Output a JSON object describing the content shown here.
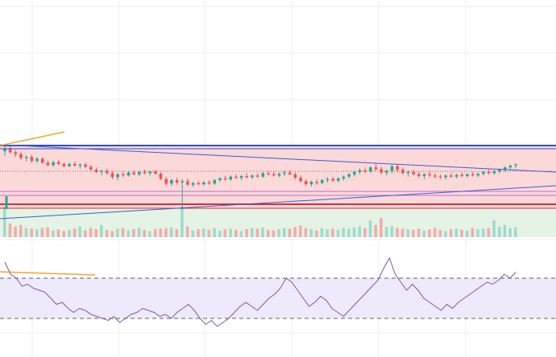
{
  "colors": {
    "background": "#ffffff",
    "grid": "#eceff3",
    "bull": "#26a69a",
    "bear": "#ef5350",
    "bull_vol": "#9fd9cf",
    "bear_vol": "#f4aaa8",
    "box_fill": "#fbd9d9",
    "box_border": "#2b4fd1",
    "green_zone": "#e4f3e4",
    "trend_line": "#3d5bd6",
    "red_line": "#d32f3c",
    "magenta_line": "#c06ad0",
    "orange_line": "#f2a72a",
    "rsi_band": "#efeafb",
    "rsi_line": "#7b57b0",
    "rsi_dash": "#5f5f5f",
    "dotted_price": "#9a6060"
  },
  "chart_data": [
    {
      "type": "candlestick",
      "ohlc": [
        [
          1.0,
          1.1,
          0.92,
          1.05
        ],
        [
          1.05,
          1.08,
          0.96,
          0.98
        ],
        [
          0.98,
          1.02,
          0.9,
          0.95
        ],
        [
          0.95,
          0.99,
          0.85,
          0.88
        ],
        [
          0.88,
          0.93,
          0.82,
          0.9
        ],
        [
          0.9,
          0.94,
          0.8,
          0.83
        ],
        [
          0.83,
          0.9,
          0.8,
          0.87
        ],
        [
          0.87,
          0.89,
          0.78,
          0.8
        ],
        [
          0.8,
          0.84,
          0.74,
          0.76
        ],
        [
          0.76,
          0.83,
          0.73,
          0.81
        ],
        [
          0.81,
          0.85,
          0.76,
          0.78
        ],
        [
          0.78,
          0.81,
          0.72,
          0.74
        ],
        [
          0.74,
          0.8,
          0.72,
          0.78
        ],
        [
          0.78,
          0.82,
          0.74,
          0.75
        ],
        [
          0.75,
          0.79,
          0.7,
          0.77
        ],
        [
          0.77,
          0.8,
          0.71,
          0.73
        ],
        [
          0.73,
          0.76,
          0.66,
          0.68
        ],
        [
          0.68,
          0.72,
          0.62,
          0.64
        ],
        [
          0.64,
          0.68,
          0.58,
          0.66
        ],
        [
          0.66,
          0.7,
          0.6,
          0.62
        ],
        [
          0.62,
          0.66,
          0.52,
          0.55
        ],
        [
          0.55,
          0.62,
          0.5,
          0.6
        ],
        [
          0.6,
          0.64,
          0.55,
          0.58
        ],
        [
          0.58,
          0.65,
          0.56,
          0.63
        ],
        [
          0.63,
          0.67,
          0.58,
          0.6
        ],
        [
          0.6,
          0.66,
          0.57,
          0.64
        ],
        [
          0.64,
          0.68,
          0.6,
          0.62
        ],
        [
          0.62,
          0.66,
          0.58,
          0.65
        ],
        [
          0.65,
          0.68,
          0.6,
          0.61
        ],
        [
          0.61,
          0.64,
          0.5,
          0.52
        ],
        [
          0.52,
          0.56,
          0.4,
          0.44
        ],
        [
          0.44,
          0.52,
          0.4,
          0.5
        ],
        [
          0.5,
          0.54,
          0.42,
          0.46
        ],
        [
          0.46,
          0.52,
          0.0,
          0.48
        ],
        [
          0.48,
          0.53,
          0.4,
          0.42
        ],
        [
          0.42,
          0.47,
          0.38,
          0.45
        ],
        [
          0.45,
          0.49,
          0.41,
          0.43
        ],
        [
          0.43,
          0.48,
          0.4,
          0.46
        ],
        [
          0.46,
          0.5,
          0.42,
          0.44
        ],
        [
          0.44,
          0.52,
          0.42,
          0.5
        ],
        [
          0.5,
          0.55,
          0.47,
          0.53
        ],
        [
          0.53,
          0.57,
          0.48,
          0.51
        ],
        [
          0.51,
          0.58,
          0.49,
          0.56
        ],
        [
          0.56,
          0.6,
          0.52,
          0.54
        ],
        [
          0.54,
          0.59,
          0.5,
          0.57
        ],
        [
          0.57,
          0.62,
          0.53,
          0.55
        ],
        [
          0.55,
          0.6,
          0.52,
          0.58
        ],
        [
          0.58,
          0.62,
          0.54,
          0.56
        ],
        [
          0.56,
          0.64,
          0.54,
          0.62
        ],
        [
          0.62,
          0.66,
          0.58,
          0.6
        ],
        [
          0.6,
          0.64,
          0.56,
          0.58
        ],
        [
          0.58,
          0.63,
          0.55,
          0.61
        ],
        [
          0.61,
          0.66,
          0.57,
          0.63
        ],
        [
          0.63,
          0.67,
          0.59,
          0.6
        ],
        [
          0.6,
          0.63,
          0.52,
          0.54
        ],
        [
          0.54,
          0.58,
          0.46,
          0.48
        ],
        [
          0.48,
          0.52,
          0.4,
          0.43
        ],
        [
          0.43,
          0.49,
          0.39,
          0.47
        ],
        [
          0.47,
          0.51,
          0.42,
          0.45
        ],
        [
          0.45,
          0.52,
          0.43,
          0.5
        ],
        [
          0.5,
          0.55,
          0.46,
          0.52
        ],
        [
          0.52,
          0.56,
          0.47,
          0.49
        ],
        [
          0.49,
          0.55,
          0.46,
          0.53
        ],
        [
          0.53,
          0.58,
          0.49,
          0.56
        ],
        [
          0.56,
          0.62,
          0.53,
          0.6
        ],
        [
          0.6,
          0.66,
          0.56,
          0.64
        ],
        [
          0.64,
          0.7,
          0.6,
          0.67
        ],
        [
          0.67,
          0.72,
          0.62,
          0.65
        ],
        [
          0.65,
          0.74,
          0.62,
          0.72
        ],
        [
          0.72,
          0.78,
          0.66,
          0.69
        ],
        [
          0.69,
          0.73,
          0.6,
          0.63
        ],
        [
          0.63,
          0.68,
          0.58,
          0.66
        ],
        [
          0.66,
          0.76,
          0.62,
          0.74
        ],
        [
          0.74,
          0.78,
          0.64,
          0.68
        ],
        [
          0.68,
          0.72,
          0.6,
          0.62
        ],
        [
          0.62,
          0.66,
          0.56,
          0.64
        ],
        [
          0.64,
          0.68,
          0.58,
          0.6
        ],
        [
          0.6,
          0.64,
          0.54,
          0.57
        ],
        [
          0.57,
          0.62,
          0.52,
          0.6
        ],
        [
          0.6,
          0.65,
          0.55,
          0.58
        ],
        [
          0.58,
          0.62,
          0.53,
          0.56
        ],
        [
          0.56,
          0.6,
          0.52,
          0.55
        ],
        [
          0.55,
          0.6,
          0.51,
          0.58
        ],
        [
          0.58,
          0.62,
          0.54,
          0.56
        ],
        [
          0.56,
          0.61,
          0.53,
          0.59
        ],
        [
          0.59,
          0.63,
          0.55,
          0.57
        ],
        [
          0.57,
          0.62,
          0.54,
          0.6
        ],
        [
          0.6,
          0.64,
          0.56,
          0.58
        ],
        [
          0.58,
          0.63,
          0.55,
          0.61
        ],
        [
          0.61,
          0.66,
          0.58,
          0.64
        ],
        [
          0.64,
          0.68,
          0.6,
          0.62
        ],
        [
          0.62,
          0.67,
          0.59,
          0.65
        ],
        [
          0.65,
          0.7,
          0.62,
          0.68
        ],
        [
          0.68,
          0.74,
          0.64,
          0.72
        ],
        [
          0.72,
          0.77,
          0.68,
          0.75
        ],
        [
          0.75,
          0.79,
          0.7,
          0.77
        ]
      ],
      "volume": [
        1.0,
        0.45,
        0.35,
        0.4,
        0.3,
        0.28,
        0.25,
        0.3,
        0.32,
        0.22,
        0.26,
        0.2,
        0.24,
        0.28,
        0.35,
        0.22,
        0.3,
        0.26,
        0.4,
        0.24,
        0.2,
        0.28,
        0.3,
        0.22,
        0.26,
        0.3,
        0.24,
        0.2,
        0.26,
        0.28,
        0.3,
        0.32,
        0.26,
        1.0,
        0.35,
        0.22,
        0.26,
        0.28,
        0.24,
        0.3,
        0.22,
        0.26,
        0.28,
        0.24,
        0.2,
        0.26,
        0.3,
        0.28,
        0.32,
        0.24,
        0.22,
        0.26,
        0.3,
        0.28,
        0.34,
        0.38,
        0.3,
        0.26,
        0.22,
        0.3,
        0.26,
        0.28,
        0.24,
        0.3,
        0.28,
        0.32,
        0.36,
        0.3,
        0.55,
        0.4,
        0.62,
        0.34,
        0.36,
        0.3,
        0.28,
        0.26,
        0.24,
        0.28,
        0.22,
        0.26,
        0.3,
        0.24,
        0.2,
        0.26,
        0.28,
        0.24,
        0.22,
        0.3,
        0.26,
        0.28,
        0.3,
        0.55,
        0.34,
        0.4,
        0.3,
        0.32
      ]
    },
    {
      "type": "line",
      "values": [
        58,
        52,
        50,
        46,
        47,
        45,
        44,
        43,
        40,
        37,
        38,
        35,
        33,
        35,
        34,
        32,
        31,
        30,
        29,
        31,
        28,
        30,
        32,
        33,
        35,
        34,
        33,
        31,
        32,
        30,
        33,
        35,
        37,
        34,
        30,
        27,
        29,
        26,
        28,
        30,
        33,
        36,
        38,
        36,
        34,
        37,
        40,
        42,
        45,
        50,
        48,
        44,
        40,
        36,
        38,
        41,
        39,
        35,
        33,
        31,
        34,
        37,
        40,
        43,
        46,
        49,
        55,
        60,
        52,
        48,
        44,
        47,
        44,
        40,
        38,
        36,
        34,
        37,
        35,
        38,
        40,
        42,
        44,
        46,
        48,
        47,
        49,
        52,
        50,
        53
      ]
    }
  ]
}
